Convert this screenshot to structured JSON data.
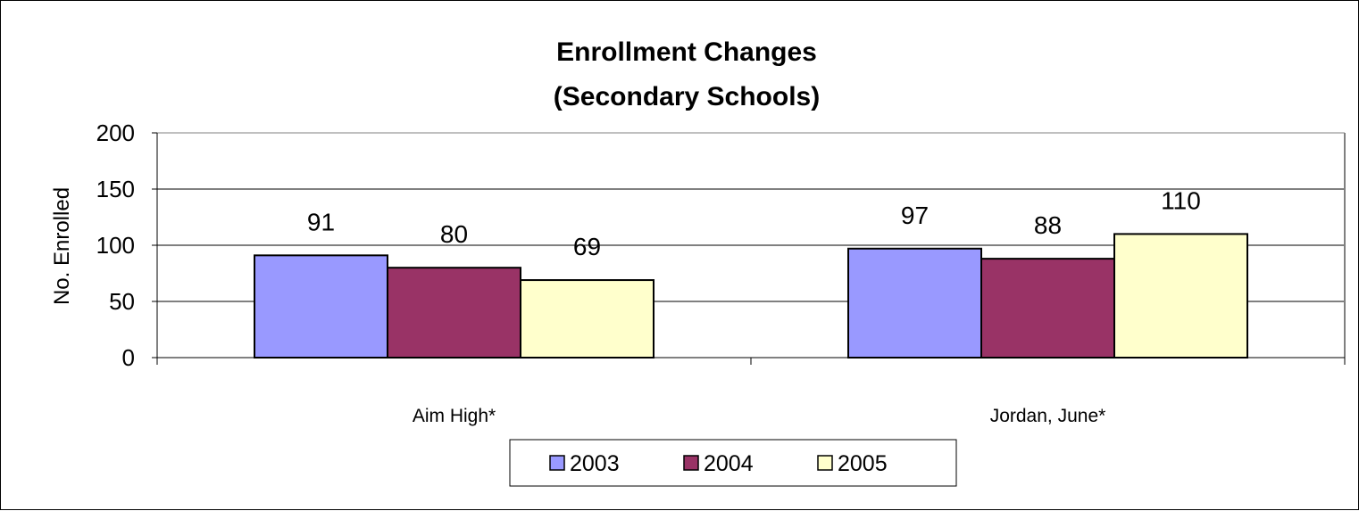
{
  "chart_data": {
    "type": "bar",
    "title": "Enrollment Changes",
    "subtitle": "(Secondary Schools)",
    "xlabel": "",
    "ylabel": "No. Enrolled",
    "ylim": [
      0,
      200
    ],
    "yticks": [
      "0",
      "50",
      "100",
      "150",
      "200"
    ],
    "grid": true,
    "legend_position": "bottom",
    "categories": [
      "Aim High*",
      "Jordan, June*"
    ],
    "series": [
      {
        "name": "2003",
        "color": "#9999ff",
        "values": [
          91,
          97
        ],
        "labels": [
          "91",
          "97"
        ]
      },
      {
        "name": "2004",
        "color": "#993366",
        "values": [
          80,
          88
        ],
        "labels": [
          "80",
          "88"
        ]
      },
      {
        "name": "2005",
        "color": "#ffffcc",
        "values": [
          69,
          110
        ],
        "labels": [
          "69",
          "110"
        ]
      }
    ]
  }
}
